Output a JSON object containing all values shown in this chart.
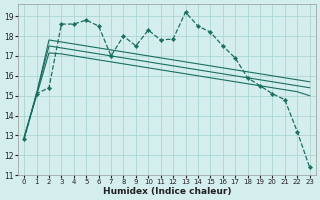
{
  "xlabel": "Humidex (Indice chaleur)",
  "xlim": [
    -0.5,
    23.5
  ],
  "ylim": [
    11,
    19.6
  ],
  "yticks": [
    11,
    12,
    13,
    14,
    15,
    16,
    17,
    18,
    19
  ],
  "xticks": [
    0,
    1,
    2,
    3,
    4,
    5,
    6,
    7,
    8,
    9,
    10,
    11,
    12,
    13,
    14,
    15,
    16,
    17,
    18,
    19,
    20,
    21,
    22,
    23
  ],
  "bg_color": "#d4eded",
  "grid_color": "#add4d4",
  "line_color": "#1a6e60",
  "main_x": [
    0,
    1,
    2,
    3,
    4,
    5,
    6,
    7,
    8,
    9,
    10,
    11,
    12,
    13,
    14,
    15,
    16,
    17,
    18,
    19,
    20,
    21,
    22,
    23
  ],
  "main_y": [
    12.8,
    15.1,
    15.4,
    18.6,
    18.6,
    18.8,
    18.5,
    17.0,
    18.0,
    17.5,
    18.3,
    17.8,
    17.85,
    19.2,
    18.5,
    18.2,
    17.5,
    16.9,
    15.9,
    15.5,
    15.1,
    14.8,
    13.2,
    11.4
  ],
  "trend1_x": [
    0,
    1,
    2,
    3,
    4,
    5,
    6,
    7,
    8,
    9,
    10,
    11,
    12,
    13,
    14,
    15,
    16,
    17,
    18,
    19,
    20,
    21,
    22,
    23
  ],
  "trend1_y": [
    12.9,
    15.1,
    17.8,
    17.7,
    17.6,
    17.5,
    17.4,
    17.3,
    17.2,
    17.1,
    17.0,
    16.9,
    16.8,
    16.7,
    16.6,
    16.5,
    16.4,
    16.3,
    16.2,
    16.1,
    16.0,
    15.9,
    15.8,
    15.7
  ],
  "trend2_x": [
    0,
    1,
    2,
    3,
    4,
    5,
    6,
    7,
    8,
    9,
    10,
    11,
    12,
    13,
    14,
    15,
    16,
    17,
    18,
    19,
    20,
    21,
    22,
    23
  ],
  "trend2_y": [
    12.9,
    15.1,
    17.5,
    17.4,
    17.3,
    17.2,
    17.1,
    17.0,
    16.9,
    16.8,
    16.7,
    16.6,
    16.5,
    16.4,
    16.3,
    16.2,
    16.1,
    16.0,
    15.9,
    15.8,
    15.7,
    15.6,
    15.5,
    15.4
  ],
  "trend3_x": [
    0,
    1,
    2,
    3,
    4,
    5,
    6,
    7,
    8,
    9,
    10,
    11,
    12,
    13,
    14,
    15,
    16,
    17,
    18,
    19,
    20,
    21,
    22,
    23
  ],
  "trend3_y": [
    12.9,
    15.0,
    17.15,
    17.1,
    17.0,
    16.9,
    16.8,
    16.7,
    16.6,
    16.5,
    16.4,
    16.3,
    16.2,
    16.1,
    16.0,
    15.9,
    15.8,
    15.7,
    15.6,
    15.5,
    15.4,
    15.3,
    15.2,
    15.0
  ]
}
